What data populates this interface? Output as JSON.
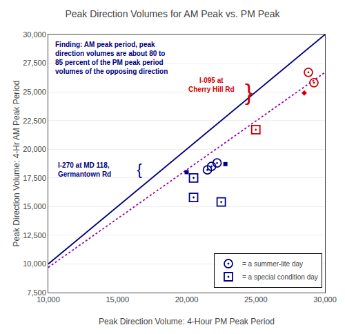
{
  "chart_data": {
    "type": "scatter",
    "title": "Peak Direction Volumes for AM Peak vs. PM Peak",
    "xlabel": "Peak Direction Volume: 4-Hour PM Peak Period",
    "ylabel": "Peak Direction Volume: 4-Hr AM Peak Period",
    "xlim": [
      10000,
      30000
    ],
    "ylim": [
      7500,
      30000
    ],
    "xticks": [
      {
        "value": 10000,
        "label": "10,000"
      },
      {
        "value": 15000,
        "label": "15,000"
      },
      {
        "value": 20000,
        "label": "20,000"
      },
      {
        "value": 25000,
        "label": "25,000"
      },
      {
        "value": 30000,
        "label": "30,000"
      }
    ],
    "yticks": [
      {
        "value": 7500,
        "label": "7,500"
      },
      {
        "value": 10000,
        "label": "10,000"
      },
      {
        "value": 12500,
        "label": "12,500"
      },
      {
        "value": 15000,
        "label": "15,000"
      },
      {
        "value": 17500,
        "label": "17,500"
      },
      {
        "value": 20000,
        "label": "20,000"
      },
      {
        "value": 22500,
        "label": "22,500"
      },
      {
        "value": 25000,
        "label": "25,000"
      },
      {
        "value": 27500,
        "label": "27,500"
      },
      {
        "value": 30000,
        "label": "30,000"
      }
    ],
    "grid": "y",
    "legend": "lower right",
    "series": [
      {
        "type": "line",
        "color": "#000080",
        "line_style": "solid",
        "x": [
          10000,
          30000
        ],
        "values": [
          10000,
          30000
        ]
      },
      {
        "type": "line",
        "color": "#9900AA",
        "line_style": "dot",
        "x": [
          10000,
          30000
        ],
        "values": [
          9700,
          26700
        ]
      },
      {
        "type": "scatter",
        "name": "= a summer-lite day",
        "color": "#000080",
        "marker": "circle-open-dot",
        "x": [
          21500,
          21800,
          22200
        ],
        "values": [
          18200,
          18500,
          18800
        ]
      },
      {
        "type": "scatter",
        "name": "= a special condition day",
        "color": "#000080",
        "marker": "square-open-dot",
        "x": [
          20500,
          20500,
          22500
        ],
        "values": [
          17500,
          15800,
          15400
        ]
      },
      {
        "type": "scatter",
        "color": "#000080",
        "marker": "square",
        "x": [
          20000,
          22800
        ],
        "values": [
          18000,
          18700
        ]
      },
      {
        "type": "scatter",
        "color": "#CC0000",
        "marker": "circle-open-dot",
        "x": [
          28800,
          29200
        ],
        "values": [
          26700,
          25800
        ]
      },
      {
        "type": "scatter",
        "color": "#CC0000",
        "marker": "square-open-dot",
        "x": [
          25000
        ],
        "values": [
          21700
        ]
      },
      {
        "type": "scatter",
        "color": "#CC0000",
        "marker": "diamond",
        "x": [
          28500
        ],
        "values": [
          24900
        ]
      }
    ],
    "annotations": [
      {
        "text": "Finding: AM peak period, peak\ndirection volumes are about 80 to\n85 percent of the PM peak period\nvolumes of the opposing direction",
        "color": "#000080"
      },
      {
        "text": "I-095 at\nCherry Hill Rd",
        "color": "#CC0000"
      },
      {
        "text": "I-270 at MD 118,\nGermantown Rd",
        "color": "#000080"
      },
      {
        "text": "}",
        "color": "#CC0000"
      },
      {
        "text": "}",
        "color": "#000080"
      }
    ]
  }
}
